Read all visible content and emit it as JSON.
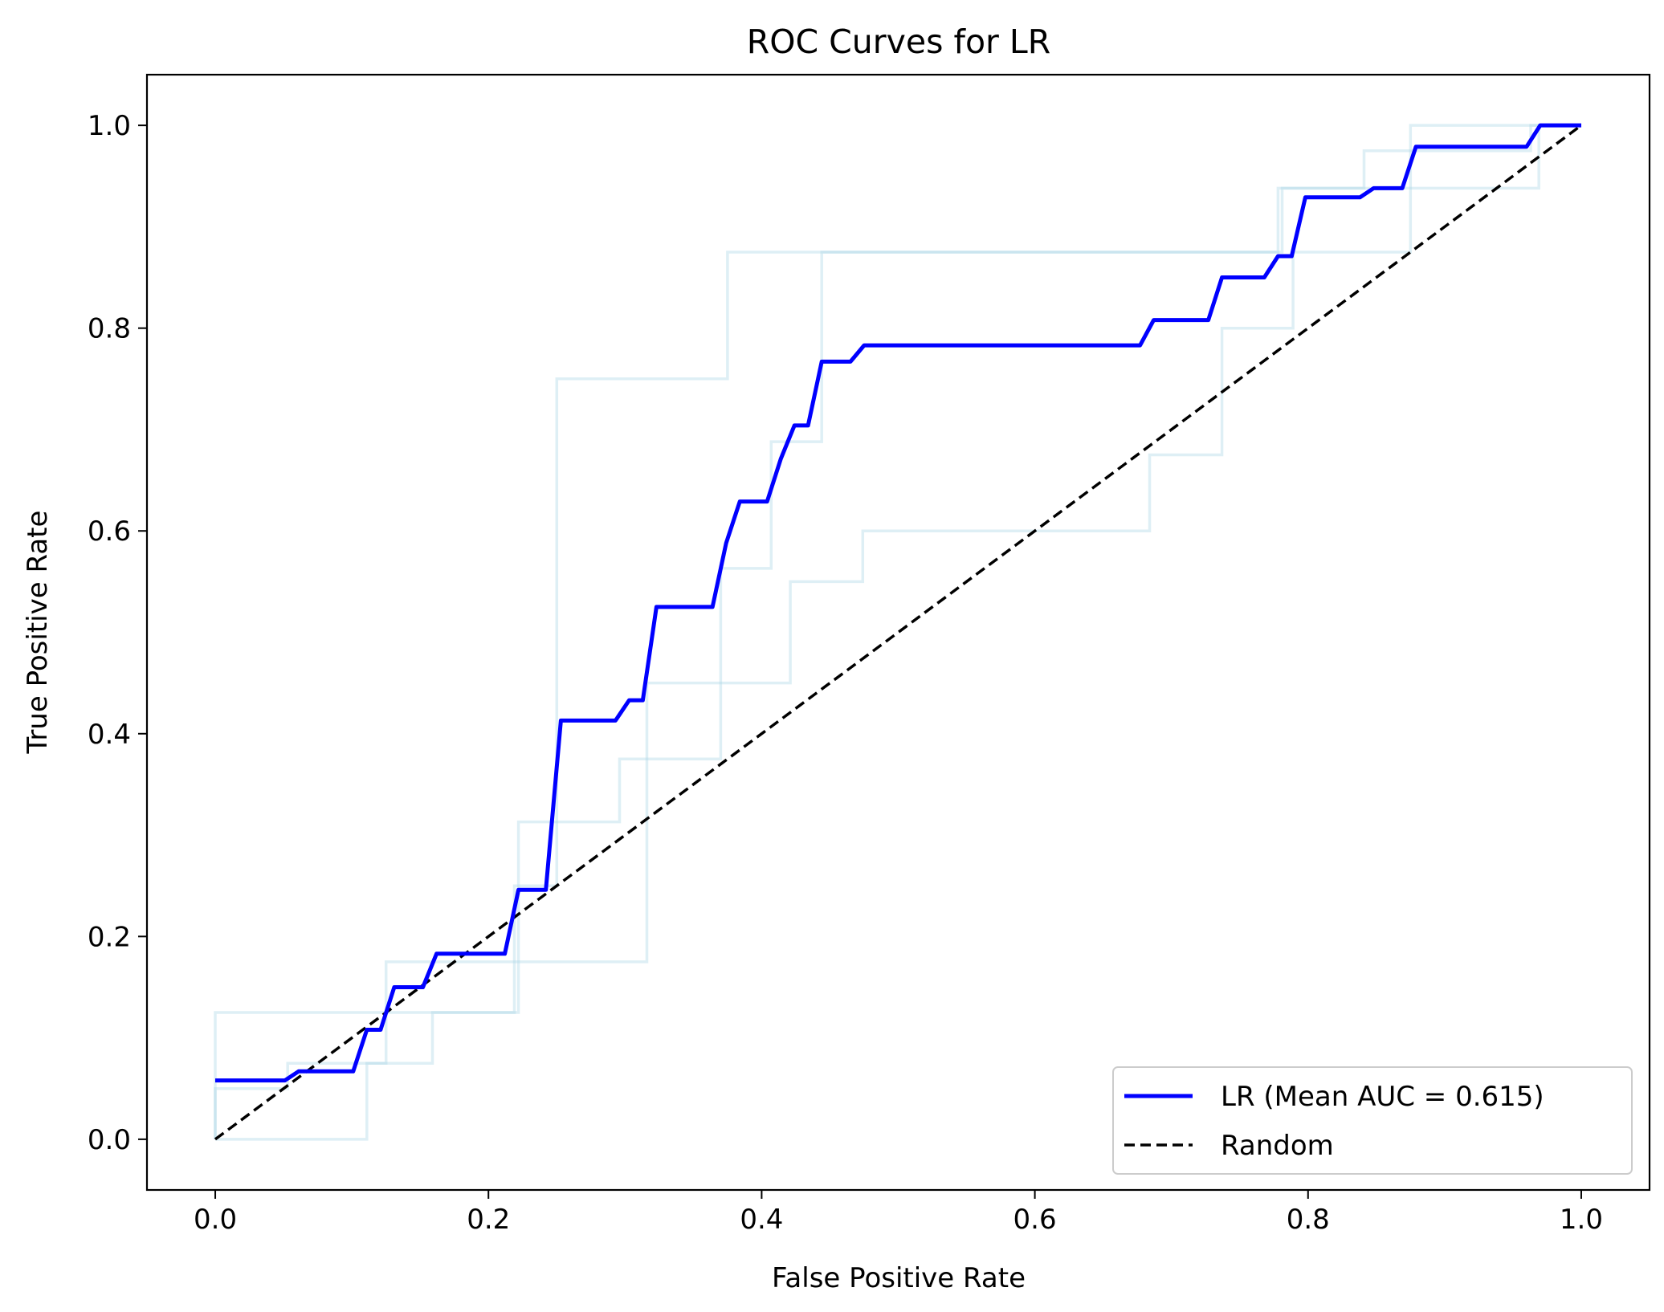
{
  "chart_data": {
    "type": "line",
    "title": "ROC Curves for LR",
    "xlabel": "False Positive Rate",
    "ylabel": "True Positive Rate",
    "xlim": [
      -0.05,
      1.05
    ],
    "ylim": [
      -0.05,
      1.05
    ],
    "xticks": [
      0.0,
      0.2,
      0.4,
      0.6,
      0.8,
      1.0
    ],
    "xtick_labels": [
      "0.0",
      "0.2",
      "0.4",
      "0.6",
      "0.8",
      "1.0"
    ],
    "yticks": [
      0.0,
      0.2,
      0.4,
      0.6,
      0.8,
      1.0
    ],
    "ytick_labels": [
      "0.0",
      "0.2",
      "0.4",
      "0.6",
      "0.8",
      "1.0"
    ],
    "grid": false,
    "legend_position": "lower-right",
    "fold_color": "#add8e6",
    "mean_color": "#0000ff",
    "random_color": "#000000",
    "fold_curves": [
      {
        "x": [
          0.0,
          0.0,
          0.0,
          0.125,
          0.125,
          0.219,
          0.219,
          0.25,
          0.25,
          0.375,
          0.375,
          0.781,
          0.781,
          0.844,
          0.844,
          0.969,
          0.969,
          1.0
        ],
        "y": [
          0.0,
          0.063,
          0.125,
          0.125,
          0.125,
          0.125,
          0.25,
          0.25,
          0.75,
          0.75,
          0.875,
          0.875,
          0.938,
          0.938,
          0.938,
          0.938,
          1.0,
          1.0
        ]
      },
      {
        "x": [
          0.0,
          0.0,
          0.111,
          0.111,
          0.159,
          0.159,
          0.222,
          0.222,
          0.296,
          0.296,
          0.37,
          0.37,
          0.407,
          0.407,
          0.444,
          0.444,
          0.778,
          0.778,
          0.815,
          0.815,
          0.841,
          0.841,
          0.963,
          0.963,
          1.0
        ],
        "y": [
          0.0,
          0.0,
          0.0,
          0.075,
          0.075,
          0.125,
          0.125,
          0.313,
          0.313,
          0.375,
          0.375,
          0.563,
          0.563,
          0.688,
          0.688,
          0.875,
          0.875,
          0.938,
          0.938,
          0.938,
          0.938,
          0.975,
          0.975,
          1.0,
          1.0
        ]
      },
      {
        "x": [
          0.0,
          0.0,
          0.053,
          0.053,
          0.125,
          0.125,
          0.316,
          0.316,
          0.421,
          0.421,
          0.474,
          0.474,
          0.684,
          0.684,
          0.737,
          0.737,
          0.789,
          0.789,
          0.875,
          0.875,
          1.0
        ],
        "y": [
          0.0,
          0.05,
          0.05,
          0.075,
          0.075,
          0.175,
          0.175,
          0.45,
          0.45,
          0.55,
          0.55,
          0.6,
          0.6,
          0.675,
          0.675,
          0.8,
          0.8,
          0.875,
          0.875,
          1.0,
          1.0
        ]
      }
    ],
    "series": [
      {
        "name": "LR (Mean AUC = 0.615)",
        "x": [
          0.0,
          0.051,
          0.061,
          0.101,
          0.111,
          0.121,
          0.131,
          0.152,
          0.162,
          0.212,
          0.222,
          0.242,
          0.253,
          0.293,
          0.303,
          0.313,
          0.323,
          0.364,
          0.374,
          0.384,
          0.404,
          0.414,
          0.424,
          0.434,
          0.444,
          0.465,
          0.475,
          0.485,
          0.677,
          0.687,
          0.727,
          0.737,
          0.768,
          0.778,
          0.788,
          0.798,
          0.838,
          0.848,
          0.869,
          0.879,
          0.96,
          0.97,
          1.0
        ],
        "y": [
          0.058,
          0.058,
          0.067,
          0.067,
          0.108,
          0.108,
          0.15,
          0.15,
          0.183,
          0.183,
          0.246,
          0.246,
          0.413,
          0.413,
          0.433,
          0.433,
          0.525,
          0.525,
          0.588,
          0.629,
          0.629,
          0.671,
          0.704,
          0.704,
          0.767,
          0.767,
          0.783,
          0.783,
          0.783,
          0.808,
          0.808,
          0.85,
          0.85,
          0.871,
          0.871,
          0.929,
          0.929,
          0.938,
          0.938,
          0.979,
          0.979,
          1.0,
          1.0
        ]
      },
      {
        "name": "Random",
        "x": [
          0.0,
          1.0
        ],
        "y": [
          0.0,
          1.0
        ]
      }
    ]
  }
}
